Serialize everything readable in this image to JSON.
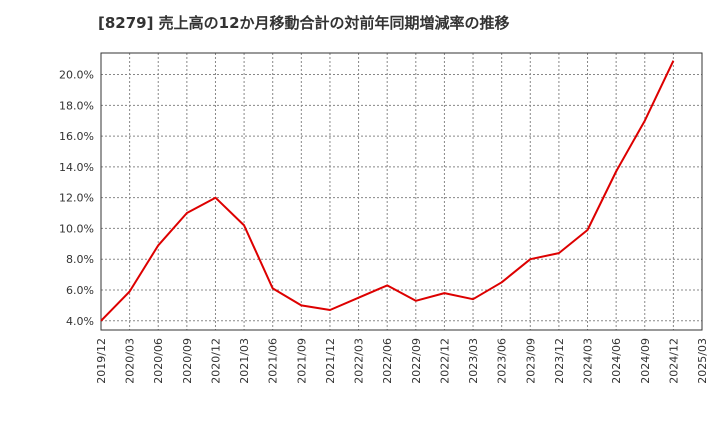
{
  "chart_data": {
    "type": "line",
    "title": "[8279]  売上高の12か月移動合計の対前年同期増減率の推移",
    "xlabel": "",
    "ylabel": "",
    "x": [
      "2019/12",
      "2020/03",
      "2020/06",
      "2020/09",
      "2020/12",
      "2021/03",
      "2021/06",
      "2021/09",
      "2021/12",
      "2022/03",
      "2022/06",
      "2022/09",
      "2022/12",
      "2023/03",
      "2023/06",
      "2023/09",
      "2023/12",
      "2024/03",
      "2024/06",
      "2024/09",
      "2024/12",
      "2025/03"
    ],
    "series": [
      {
        "name": "増減率",
        "color": "#dd0000",
        "values": [
          4.0,
          5.9,
          8.9,
          11.0,
          12.0,
          10.2,
          6.1,
          5.0,
          4.7,
          5.5,
          6.3,
          5.3,
          5.8,
          5.4,
          6.5,
          8.0,
          8.4,
          9.9,
          13.7,
          17.0,
          20.9,
          null
        ]
      }
    ],
    "yticks": [
      "4.0%",
      "6.0%",
      "8.0%",
      "10.0%",
      "12.0%",
      "14.0%",
      "16.0%",
      "18.0%",
      "20.0%"
    ],
    "ylim": [
      3.4,
      21.4
    ],
    "grid": true
  }
}
